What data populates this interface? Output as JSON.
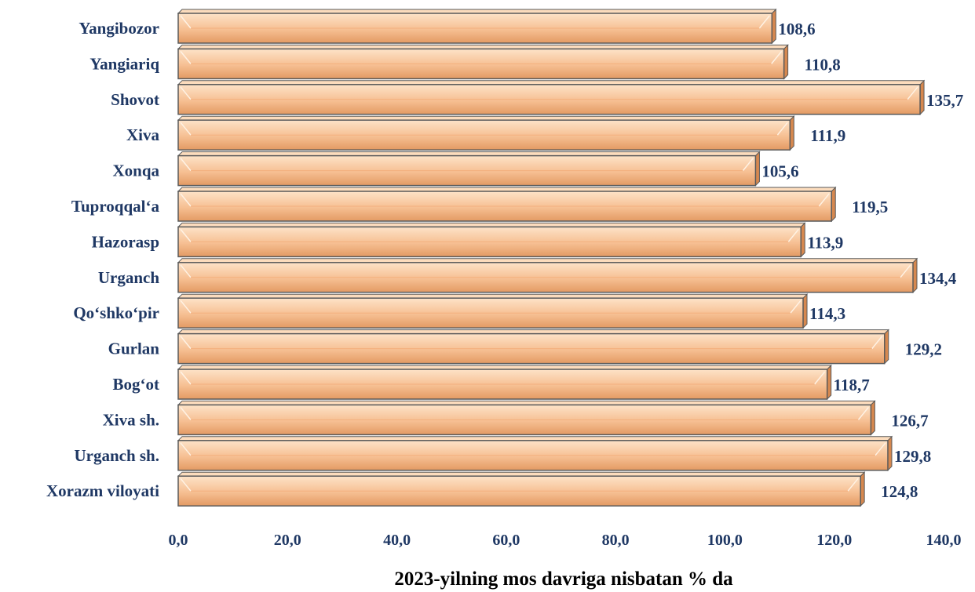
{
  "chart_data": {
    "type": "bar",
    "orientation": "horizontal",
    "categories": [
      "Yangibozor",
      "Yangiariq",
      "Shovot",
      "Xiva",
      "Xonqa",
      "Tuproqqal‘a",
      "Hazorasp",
      "Urganch",
      "Qo‘shko‘pir",
      "Gurlan",
      "Bog‘ot",
      "Xiva sh.",
      "Urganch sh.",
      "Xorazm viloyati"
    ],
    "values": [
      108.6,
      110.8,
      135.7,
      111.9,
      105.6,
      119.5,
      113.9,
      134.4,
      114.3,
      129.2,
      118.7,
      126.7,
      129.8,
      124.8
    ],
    "value_labels": [
      "108,6",
      "110,8",
      "135,7",
      "111,9",
      "105,6",
      "119,5",
      "113,9",
      "134,4",
      "114,3",
      "129,2",
      "118,7",
      "126,7",
      "129,8",
      "124,8"
    ],
    "xlim": [
      0,
      140
    ],
    "xticks": [
      "0,0",
      "20,0",
      "40,0",
      "60,0",
      "80,0",
      "100,0",
      "120,0",
      "140,0"
    ],
    "xlabel": "2023-yilning mos davriga nisbatan % da",
    "grid": false,
    "colors": {
      "bar_light": "#fde3c8",
      "bar_mid": "#f6bf92",
      "bar_dark": "#e39a63",
      "bar_edge": "#5a5a5a",
      "text": "#1f3864"
    }
  }
}
